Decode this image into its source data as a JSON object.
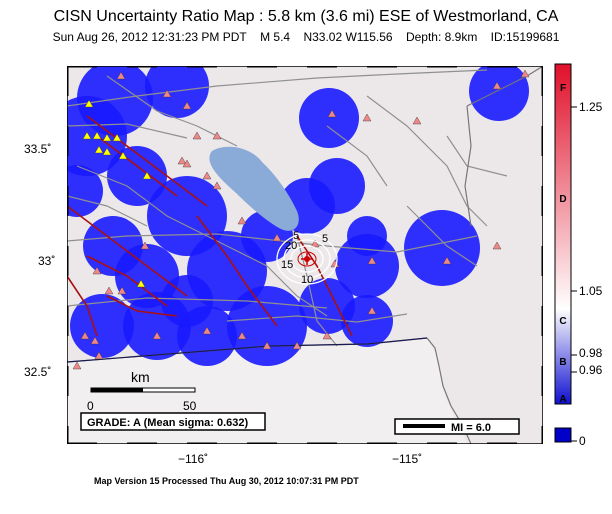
{
  "header": {
    "title": "CISN Uncertainty Ratio Map : 5.8 km (3.6 mi) ESE of Westmorland, CA",
    "date": "Sun Aug 26, 2012 12:31:23 PM PDT",
    "magnitude": "M 5.4",
    "location": "N33.02 W115.56",
    "depth": "Depth: 8.9km",
    "event_id": "ID:15199681"
  },
  "axes": {
    "lat_ticks": [
      "33.5˚",
      "33˚",
      "32.5˚"
    ],
    "lon_ticks": [
      "−116˚",
      "−115˚"
    ]
  },
  "scale_bar": {
    "unit": "km",
    "start": "0",
    "end": "50"
  },
  "grade": {
    "text": "GRADE: A (Mean sigma: 0.632)"
  },
  "mi_legend": {
    "text": "MI = 6.0"
  },
  "contours": {
    "labels": [
      "5",
      "10",
      "15",
      "20",
      "5"
    ]
  },
  "colorbar": {
    "values": [
      "1.25",
      "1.05",
      "0.98",
      "0.96",
      "0"
    ],
    "grades": [
      "F",
      "D",
      "C",
      "B",
      "A"
    ],
    "colors": {
      "high": "#e0102a",
      "mid": "#ffffff",
      "low": "#1010d0",
      "base": "#0000c8"
    }
  },
  "footer": {
    "text": "Map Version 15 Processed Thu Aug 30, 2012 10:07:31 PM PDT"
  },
  "map": {
    "colors": {
      "uncertainty": "#1a1aff",
      "lake": "#8aaad8",
      "land": "#ece8ea",
      "station": "#ee8888",
      "station_yellow": "#ffff00",
      "fault": "#aa1010",
      "road": "#909090"
    }
  }
}
